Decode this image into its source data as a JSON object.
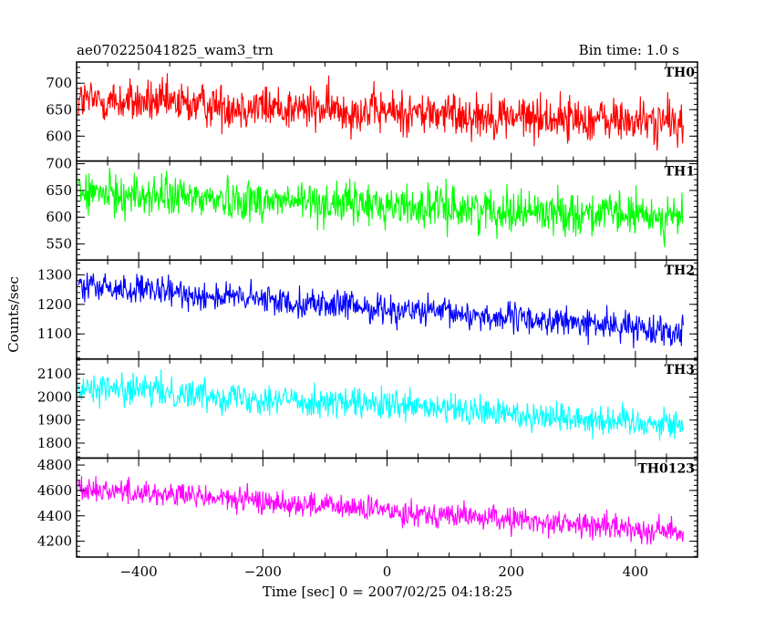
{
  "chart_data": {
    "type": "line",
    "title": "ae070225041825_wam3_trn",
    "bin_label": "Bin time: 1.0 s",
    "xlabel": "Time [sec] 0 = 2007/02/25 04:18:25",
    "ylabel": "Counts/sec",
    "xlim": [
      -500,
      500
    ],
    "xticks": [
      -400,
      -200,
      0,
      200,
      400
    ],
    "x_range": [
      -497,
      477
    ],
    "panels": [
      {
        "name": "TH0",
        "color": "#ff0000",
        "ylim": [
          553,
          740
        ],
        "yticks": [
          600,
          650,
          700
        ],
        "start": 668,
        "end": 625,
        "amp": 30
      },
      {
        "name": "TH1",
        "color": "#00ff00",
        "ylim": [
          520,
          705
        ],
        "yticks": [
          550,
          600,
          650,
          700
        ],
        "start": 645,
        "end": 600,
        "amp": 28
      },
      {
        "name": "TH2",
        "color": "#0000ff",
        "ylim": [
          1015,
          1350
        ],
        "yticks": [
          1100,
          1200,
          1300
        ],
        "start": 1262,
        "end": 1110,
        "amp": 35
      },
      {
        "name": "TH3",
        "color": "#00ffff",
        "ylim": [
          1735,
          2165
        ],
        "yticks": [
          1800,
          1900,
          2000,
          2100
        ],
        "start": 2045,
        "end": 1880,
        "amp": 48
      },
      {
        "name": "TH0123",
        "color": "#ff00ff",
        "ylim": [
          4075,
          4855
        ],
        "yticks": [
          4200,
          4400,
          4600,
          4800
        ],
        "start": 4620,
        "end": 4270,
        "amp": 70
      }
    ]
  }
}
